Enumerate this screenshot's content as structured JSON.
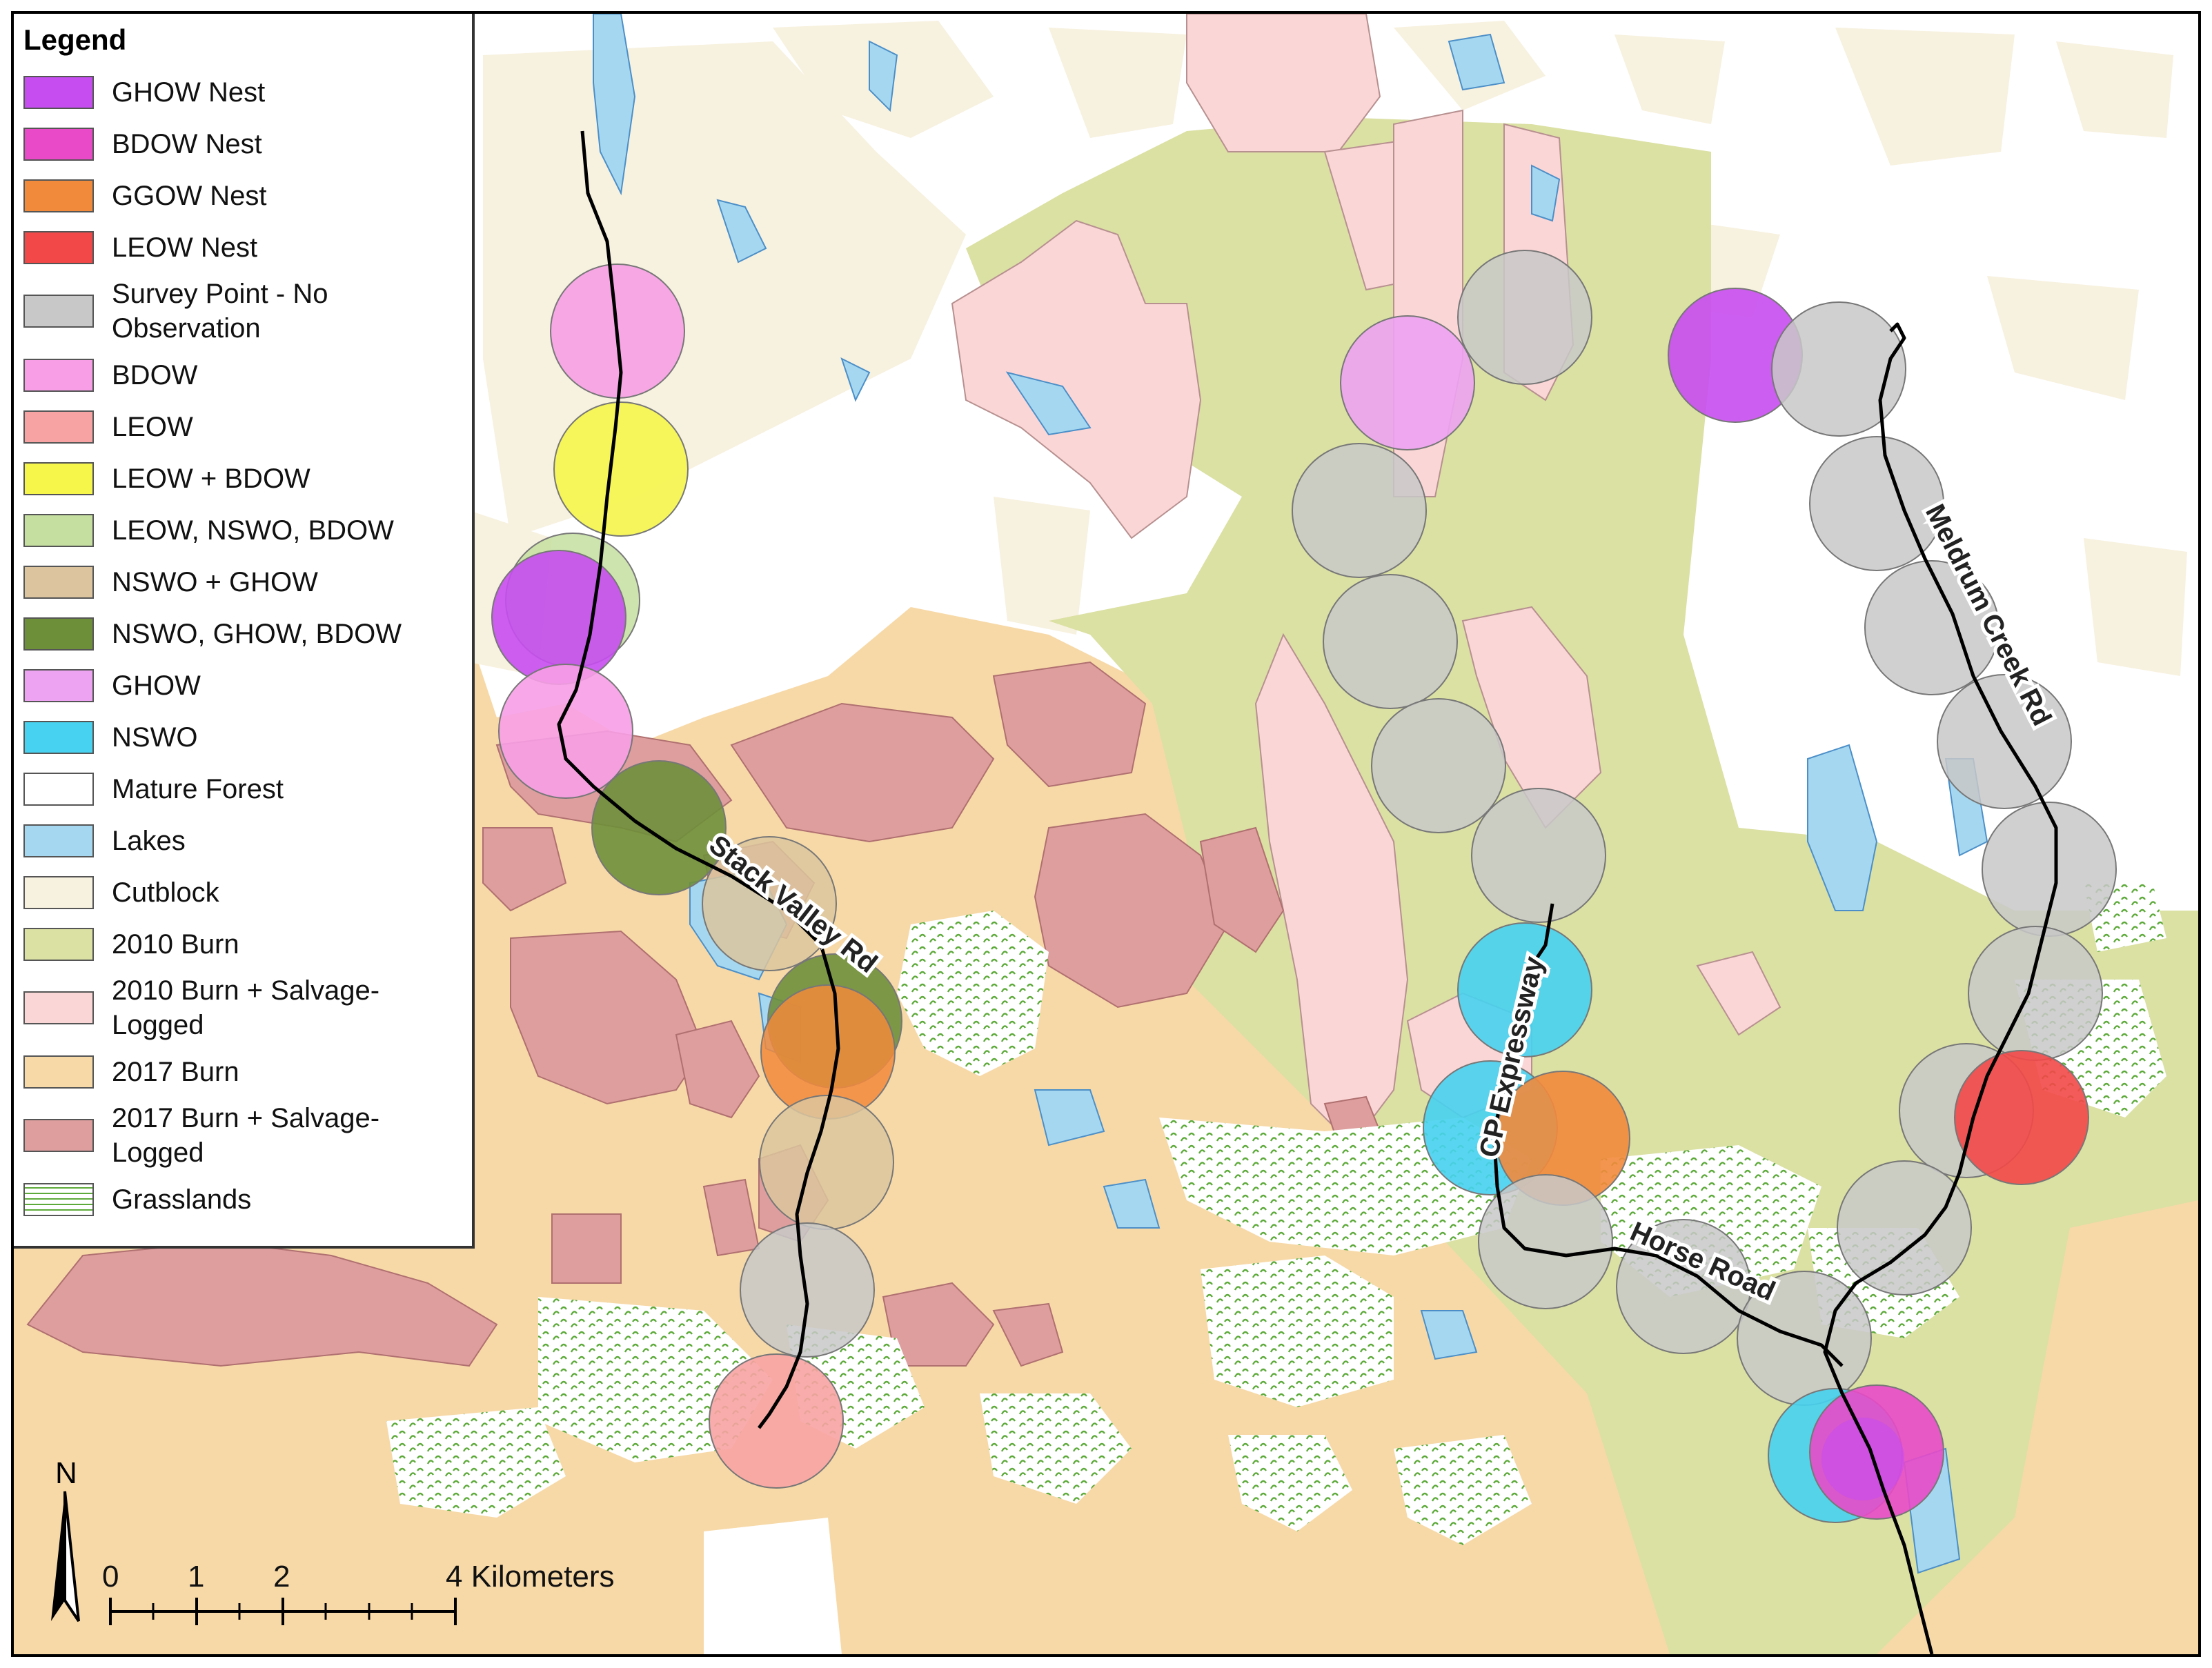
{
  "legend": {
    "title": "Legend",
    "items": [
      {
        "label": "GHOW Nest",
        "color": "#c64df0"
      },
      {
        "label": "BDOW Nest",
        "color": "#e84ac8"
      },
      {
        "label": "GGOW Nest",
        "color": "#f28a3c"
      },
      {
        "label": "LEOW Nest",
        "color": "#f24848"
      },
      {
        "label": "Survey Point - No\nObservation",
        "color": "#c8c8c8"
      },
      {
        "label": "BDOW",
        "color": "#f79ee6"
      },
      {
        "label": "LEOW",
        "color": "#f7a3a3"
      },
      {
        "label": "LEOW + BDOW",
        "color": "#f5f54a"
      },
      {
        "label": "LEOW, NSWO, BDOW",
        "color": "#c4dfa0"
      },
      {
        "label": "NSWO + GHOW",
        "color": "#dcc59e"
      },
      {
        "label": "NSWO, GHOW, BDOW",
        "color": "#6e8f3a"
      },
      {
        "label": "GHOW",
        "color": "#eda3f2"
      },
      {
        "label": "NSWO",
        "color": "#46d2f0"
      },
      {
        "label": "Mature Forest",
        "color": "#ffffff"
      },
      {
        "label": "Lakes",
        "color": "#a5d8f0"
      },
      {
        "label": "Cutblock",
        "color": "#f7f1df"
      },
      {
        "label": "2010 Burn",
        "color": "#dbe0a3"
      },
      {
        "label": "2010 Burn + Salvage-\nLogged",
        "color": "#fbd6d6"
      },
      {
        "label": "2017 Burn",
        "color": "#f7d9a8"
      },
      {
        "label": "2017 Burn + Salvage-\nLogged",
        "color": "#de9e9e"
      },
      {
        "label": "Grasslands",
        "color": "#ffffff"
      }
    ]
  },
  "roads": {
    "stack_valley": "Stack Valley Rd",
    "cp_expressway": "CP Expressway",
    "horse_road": "Horse Road",
    "meldrum_creek": "Meldrum Creek Rd"
  },
  "north_arrow": {
    "label": "N"
  },
  "scale_bar": {
    "ticks": [
      "0",
      "1",
      "2",
      "4 Kilometers"
    ]
  }
}
